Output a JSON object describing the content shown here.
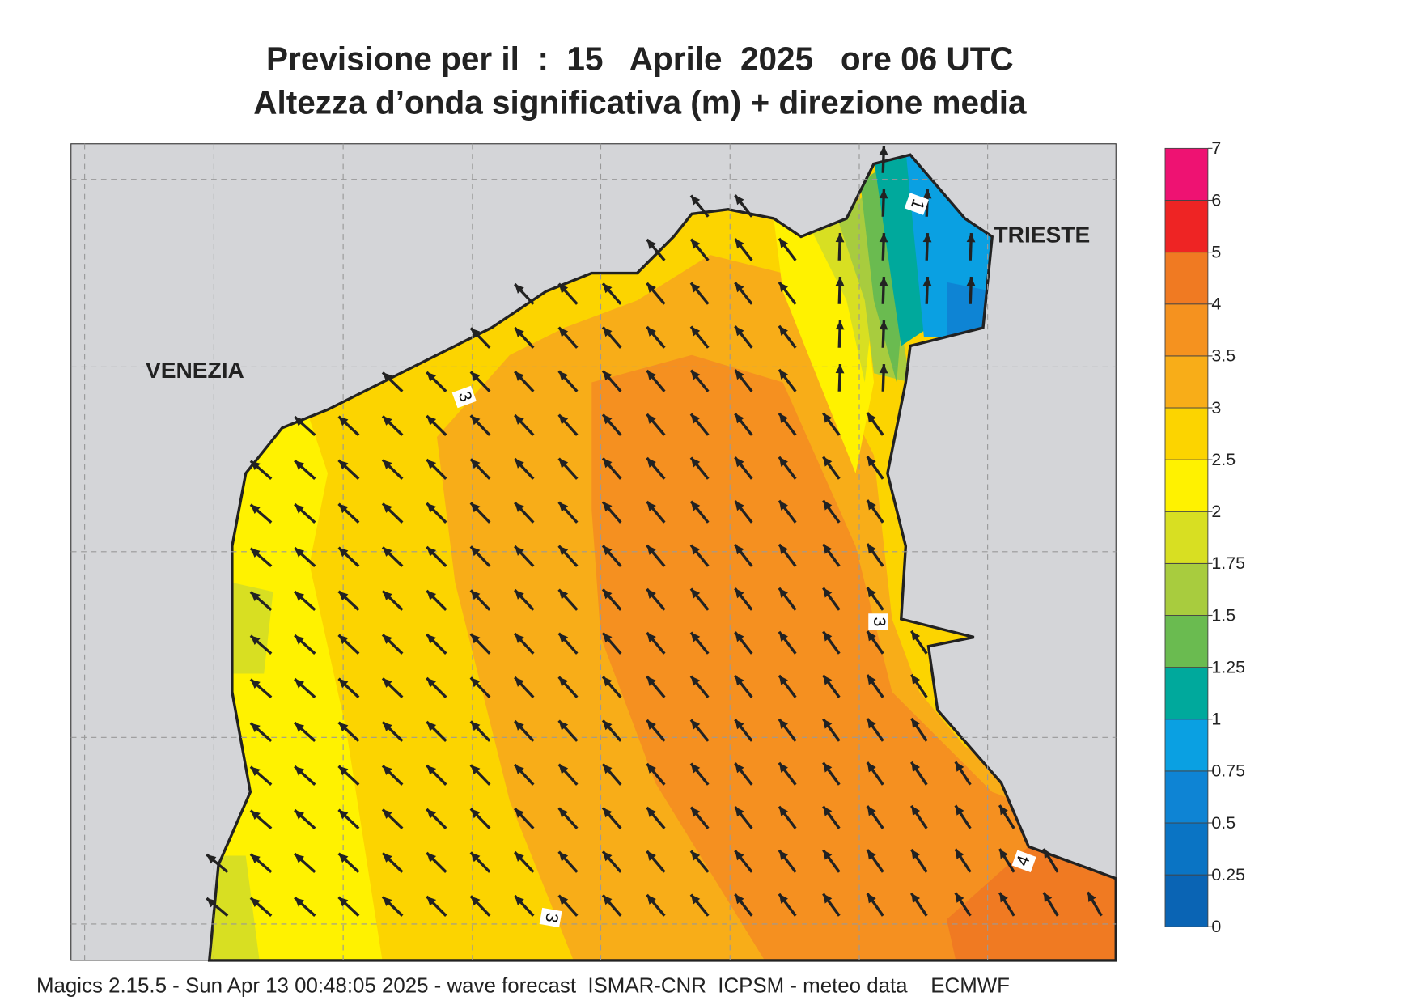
{
  "header": {
    "title_line1": "Previsione per il  :  15   Aprile  2025   ore 06 UTC",
    "title_line2": "Altezza d’onda significativa (m) + direzione media"
  },
  "map": {
    "places": [
      "VENEZIA",
      "TRIESTE"
    ],
    "contour_labels": [
      3,
      3,
      3,
      1,
      4
    ]
  },
  "colorbar": {
    "ticks": [
      0,
      0.25,
      0.5,
      0.75,
      1,
      1.25,
      1.5,
      1.75,
      2,
      2.5,
      3,
      3.5,
      4,
      5,
      6,
      7
    ],
    "colors": [
      "#0a64b4",
      "#0a74c4",
      "#0e84d4",
      "#0aa0e2",
      "#00a99c",
      "#6abb50",
      "#a8cc3e",
      "#d8df22",
      "#fff200",
      "#fcd400",
      "#f8ad18",
      "#f5921f",
      "#f07a22",
      "#ee2424",
      "#ee1272"
    ]
  },
  "footer": {
    "text": "Magics 2.15.5 - Sun Apr 13 00:48:05 2025 - wave forecast  ISMAR-CNR  ICPSM - meteo data    ECMWF"
  }
}
